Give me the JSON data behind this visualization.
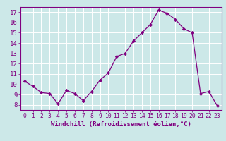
{
  "x": [
    0,
    1,
    2,
    3,
    4,
    5,
    6,
    7,
    8,
    9,
    10,
    11,
    12,
    13,
    14,
    15,
    16,
    17,
    18,
    19,
    20,
    21,
    22,
    23
  ],
  "y": [
    10.3,
    9.8,
    9.2,
    9.1,
    8.1,
    9.4,
    9.1,
    8.4,
    9.3,
    10.4,
    11.1,
    12.7,
    13.0,
    14.2,
    15.0,
    15.8,
    17.2,
    16.9,
    16.3,
    15.4,
    15.0,
    9.1,
    9.3,
    7.9
  ],
  "line_color": "#800080",
  "marker": "D",
  "marker_size": 2.2,
  "bg_color": "#cce8e8",
  "grid_color": "#ffffff",
  "xlabel": "Windchill (Refroidissement éolien,°C)",
  "xlim": [
    -0.5,
    23.5
  ],
  "ylim": [
    7.5,
    17.5
  ],
  "yticks": [
    8,
    9,
    10,
    11,
    12,
    13,
    14,
    15,
    16,
    17
  ],
  "xticks": [
    0,
    1,
    2,
    3,
    4,
    5,
    6,
    7,
    8,
    9,
    10,
    11,
    12,
    13,
    14,
    15,
    16,
    17,
    18,
    19,
    20,
    21,
    22,
    23
  ],
  "tick_color": "#800080",
  "label_color": "#800080",
  "spine_color": "#800080",
  "xlabel_fontsize": 6.5,
  "ytick_fontsize": 6.5,
  "xtick_fontsize": 5.8
}
